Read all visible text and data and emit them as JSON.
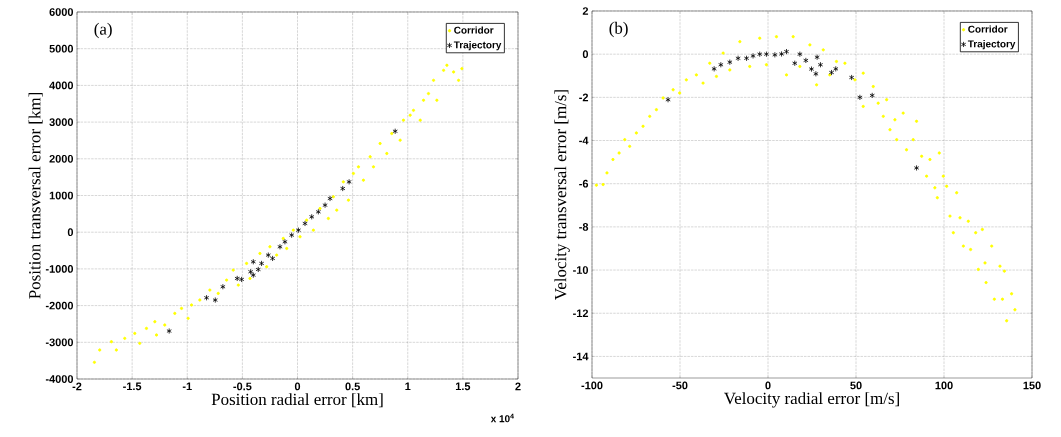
{
  "chart_data": [
    {
      "type": "scatter",
      "xlabel": "Position radial error [km]",
      "ylabel": "Position transversal error [km]",
      "annotations": [
        "(a)",
        "x 10$^{4}$"
      ],
      "xlim": [
        -2,
        2
      ],
      "ylim": [
        -4000,
        6000
      ],
      "xticks": [
        -2,
        -1.5,
        -1,
        -0.5,
        0,
        0.5,
        1,
        1.5,
        2
      ],
      "yticks": [
        -4000,
        -3000,
        -2000,
        -1000,
        0,
        1000,
        2000,
        3000,
        4000,
        5000,
        6000
      ],
      "grid": true,
      "legend": "top right",
      "series": [
        {
          "name": "Corridor",
          "color": "#ffff00",
          "marker": "circle",
          "x": [
            -1.842,
            -1.794,
            -1.688,
            -1.643,
            -1.567,
            -1.476,
            -1.431,
            -1.37,
            -1.294,
            -1.279,
            -1.204,
            -1.113,
            -1.052,
            -0.992,
            -0.961,
            -0.886,
            -0.795,
            -0.719,
            -0.643,
            -0.583,
            -0.537,
            -0.462,
            -0.431,
            -0.341,
            -0.28,
            -0.25,
            -0.189,
            -0.129,
            -0.098,
            -0.038,
            0.023,
            0.083,
            0.144,
            0.204,
            0.28,
            0.325,
            0.356,
            0.416,
            0.462,
            0.507,
            0.553,
            0.598,
            0.659,
            0.689,
            0.749,
            0.81,
            0.855,
            0.931,
            0.961,
            1.022,
            1.052,
            1.113,
            1.143,
            1.188,
            1.234,
            1.264,
            1.325,
            1.355,
            1.416,
            1.461,
            1.491
          ],
          "values": [
            -3546,
            -3211,
            -2984,
            -3211,
            -2893,
            -2757,
            -3029,
            -2621,
            -2439,
            -2802,
            -2530,
            -2212,
            -2076,
            -2348,
            -1985,
            -1849,
            -1577,
            -1668,
            -1305,
            -1033,
            -1441,
            -851,
            -1260,
            -579,
            -942,
            -397,
            -624,
            -171,
            -443,
            56,
            -125,
            329,
            56,
            646,
            374,
            964,
            601,
            1372,
            873,
            1599,
            1781,
            1417,
            2054,
            1781,
            2416,
            2144,
            2688,
            2507,
            3052,
            3188,
            3320,
            3052,
            3595,
            3777,
            4138,
            3595,
            4410,
            4548,
            4366,
            4138,
            4456
          ]
        },
        {
          "name": "Trajectory",
          "color": "#000000",
          "marker": "cross",
          "x": [
            -1.164,
            -0.825,
            -0.746,
            -0.677,
            -0.547,
            -0.507,
            -0.401,
            -0.425,
            -0.401,
            -0.356,
            -0.326,
            -0.265,
            -0.226,
            -0.159,
            -0.114,
            -0.053,
            0.008,
            0.068,
            0.129,
            0.189,
            0.25,
            0.295,
            0.41,
            0.468,
            0.886
          ],
          "values": [
            -2693,
            -1786,
            -1849,
            -1486,
            -1260,
            -1287,
            -806,
            -1078,
            -1169,
            -1015,
            -851,
            -624,
            -715,
            -397,
            -261,
            -80,
            56,
            238,
            419,
            555,
            737,
            918,
            1190,
            1372,
            2751
          ]
        }
      ]
    },
    {
      "type": "scatter",
      "xlabel": "Velocity radial error [m/s]",
      "ylabel": "Velocity transversal error [m/s]",
      "annotations": [
        "(b)"
      ],
      "xlim": [
        -100,
        150
      ],
      "ylim": [
        -15,
        2
      ],
      "xticks": [
        -100,
        -50,
        0,
        50,
        100,
        150
      ],
      "yticks": [
        -14,
        -12,
        -10,
        -8,
        -6,
        -4,
        -2,
        0,
        2
      ],
      "grid": true,
      "legend": "top right",
      "series": [
        {
          "name": "Corridor",
          "color": "#ffff00",
          "marker": "circle",
          "x": [
            -97.5,
            -93.7,
            -91.5,
            -88.1,
            -84.6,
            -81.4,
            -78.6,
            -74.8,
            -71.0,
            -67.2,
            -63.4,
            -59.6,
            -53.9,
            -50.2,
            -46.4,
            -40.7,
            -36.9,
            -33.1,
            -29.3,
            -25.5,
            -21.7,
            -16.0,
            -10.4,
            -4.7,
            -0.9,
            4.8,
            10.5,
            14.3,
            18.1,
            23.8,
            27.6,
            31.4,
            35.1,
            38.9,
            43.7,
            49.4,
            54.1,
            54.1,
            59.8,
            62.6,
            65.5,
            67.4,
            69.3,
            72.1,
            73.1,
            76.8,
            78.7,
            82.5,
            84.4,
            87.3,
            90.1,
            92.0,
            94.8,
            97.3,
            96.2,
            99.6,
            101.5,
            103.4,
            105.3,
            107.2,
            109.1,
            111.0,
            113.8,
            115.1,
            118.0,
            119.5,
            121.8,
            123.3,
            123.9,
            127.1,
            128.6,
            131.8,
            133.2,
            134.3,
            135.6,
            138.4,
            140.3
          ],
          "values": [
            -6.07,
            -6.04,
            -5.5,
            -4.88,
            -4.58,
            -3.96,
            -4.27,
            -3.65,
            -3.34,
            -2.88,
            -2.57,
            -2.03,
            -1.65,
            -1.8,
            -1.19,
            -0.96,
            -1.34,
            -0.42,
            -1.03,
            0.05,
            -0.73,
            0.58,
            -0.57,
            0.74,
            -0.49,
            0.81,
            -0.96,
            0.81,
            -0.57,
            0.43,
            -1.42,
            0.2,
            -0.96,
            -0.34,
            -0.42,
            -1.19,
            -0.88,
            -2.42,
            -1.5,
            -2.27,
            -2.88,
            -2.11,
            -3.5,
            -3.04,
            -3.96,
            -2.73,
            -4.43,
            -3.96,
            -3.11,
            -4.73,
            -5.65,
            -4.88,
            -6.19,
            -4.58,
            -6.65,
            -5.65,
            -6.12,
            -7.5,
            -8.27,
            -6.42,
            -7.58,
            -8.89,
            -7.74,
            -9.05,
            -8.27,
            -9.97,
            -8.12,
            -9.67,
            -10.58,
            -8.89,
            -11.35,
            -9.82,
            -11.35,
            -10.05,
            -12.35,
            -11.1,
            -11.84
          ]
        },
        {
          "name": "Trajectory",
          "color": "#000000",
          "marker": "cross",
          "x": [
            -56.8,
            -30.6,
            -26.8,
            -21.7,
            -17.0,
            -12.2,
            -8.5,
            -4.7,
            -0.9,
            3.9,
            7.7,
            10.5,
            15.2,
            18.1,
            21.5,
            24.7,
            27.2,
            27.9,
            29.8,
            36.1,
            38.5,
            47.5,
            52.2,
            59.2,
            84.4
          ],
          "values": [
            -2.11,
            -0.68,
            -0.49,
            -0.37,
            -0.19,
            -0.19,
            -0.08,
            0.0,
            0.0,
            -0.03,
            0.01,
            0.12,
            -0.42,
            0.0,
            -0.29,
            -0.69,
            -0.91,
            -0.14,
            -0.49,
            -0.85,
            -0.68,
            -1.08,
            -2.0,
            -1.91,
            -5.27
          ]
        }
      ]
    }
  ]
}
